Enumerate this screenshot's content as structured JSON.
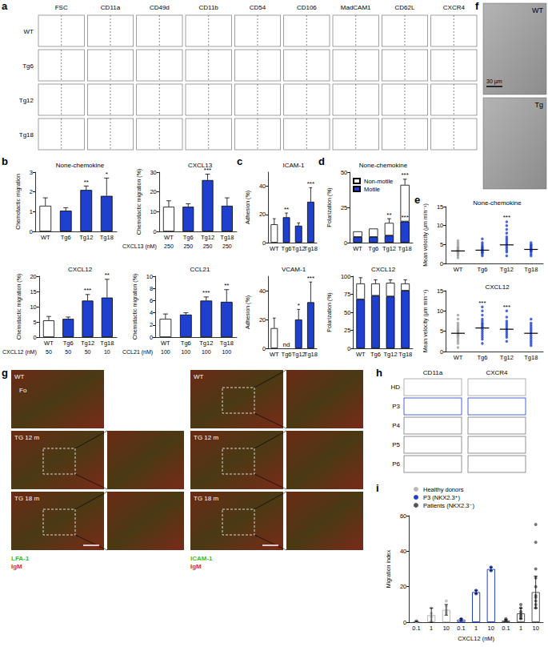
{
  "chart_data": [
    {
      "type": "bar",
      "title": "None-chemokine",
      "y_label": "Chemotactic migration",
      "categories": [
        "WT",
        "Tg6",
        "Tg12",
        "Tg18"
      ],
      "values": [
        1.3,
        1.05,
        2.1,
        1.8
      ],
      "errors": [
        0.4,
        0.15,
        0.2,
        0.9
      ],
      "annotations": [
        null,
        null,
        "**",
        "*"
      ],
      "colors": [
        "#ffffff",
        "#1f3fcf",
        "#1f3fcf",
        "#1f3fcf"
      ],
      "ylim": [
        0,
        3
      ],
      "yticks": [
        0,
        1,
        2,
        3
      ],
      "grid": false
    },
    {
      "type": "bar",
      "title": "CXCL13",
      "y_label": "Chemotactic migration (%)",
      "categories": [
        "WT",
        "Tg6",
        "Tg12",
        "Tg18"
      ],
      "values": [
        12.5,
        12.5,
        26,
        13
      ],
      "errors": [
        3,
        1.5,
        3,
        4
      ],
      "annotations": [
        null,
        null,
        "***",
        null
      ],
      "colors": [
        "#ffffff",
        "#1f3fcf",
        "#1f3fcf",
        "#1f3fcf"
      ],
      "x_sublabels": [
        250,
        250,
        250,
        250
      ],
      "x_sublabel_title": "CXCL13 (nM)",
      "ylim": [
        0,
        30
      ],
      "yticks": [
        0,
        10,
        20,
        30
      ],
      "grid": false
    },
    {
      "type": "bar",
      "title": "CXCL12",
      "y_label": "Chemotactic migration (%)",
      "categories": [
        "WT",
        "Tg6",
        "Tg12",
        "Tg18"
      ],
      "values": [
        5.5,
        6,
        12,
        13
      ],
      "errors": [
        1.3,
        0.6,
        2,
        6
      ],
      "annotations": [
        null,
        null,
        "***",
        "**"
      ],
      "colors": [
        "#ffffff",
        "#1f3fcf",
        "#1f3fcf",
        "#1f3fcf"
      ],
      "x_sublabels": [
        50,
        50,
        50,
        10
      ],
      "x_sublabel_title": "CXCL12 (nM)",
      "ylim": [
        0,
        20
      ],
      "yticks": [
        0,
        5,
        10,
        15,
        20
      ],
      "grid": false
    },
    {
      "type": "bar",
      "title": "CCL21",
      "y_label": "Chemotactic migration (%)",
      "categories": [
        "WT",
        "Tg6",
        "Tg12",
        "Tg18"
      ],
      "values": [
        3,
        3.7,
        6,
        5.8
      ],
      "errors": [
        0.8,
        0.3,
        0.6,
        2
      ],
      "annotations": [
        null,
        null,
        "***",
        "**"
      ],
      "colors": [
        "#ffffff",
        "#1f3fcf",
        "#1f3fcf",
        "#1f3fcf"
      ],
      "x_sublabels": [
        100,
        100,
        100,
        100
      ],
      "x_sublabel_title": "CCL21 (nM)",
      "ylim": [
        0,
        10
      ],
      "yticks": [
        0,
        2,
        4,
        6,
        8,
        10
      ],
      "grid": false
    },
    {
      "type": "bar",
      "title": "ICAM-1",
      "y_label": "Adhesion (%)",
      "categories": [
        "WT",
        "Tg6",
        "Tg12",
        "Tg18"
      ],
      "values": [
        13,
        18,
        12,
        29
      ],
      "errors": [
        4,
        3,
        2,
        10
      ],
      "annotations": [
        null,
        "**",
        null,
        "***"
      ],
      "colors": [
        "#ffffff",
        "#1f3fcf",
        "#1f3fcf",
        "#1f3fcf"
      ],
      "ylim": [
        0,
        50
      ],
      "yticks": [
        0,
        20,
        40
      ],
      "grid": false
    },
    {
      "type": "bar",
      "title": "VCAM-1",
      "y_label": "Adhesion (%)",
      "categories": [
        "WT",
        "Tg6",
        "Tg12",
        "Tg18"
      ],
      "values": [
        14,
        null,
        20,
        32
      ],
      "errors": [
        7,
        null,
        7,
        14
      ],
      "annotations": [
        null,
        "nd",
        "*",
        "***"
      ],
      "colors": [
        "#ffffff",
        "#1f3fcf",
        "#1f3fcf",
        "#1f3fcf"
      ],
      "ylim": [
        0,
        50
      ],
      "yticks": [
        0,
        20,
        40
      ],
      "grid": false
    },
    {
      "type": "bar",
      "title": "None-chemokine",
      "y_label": "Polarization (%)",
      "categories": [
        "WT",
        "Tg6",
        "Tg12",
        "Tg18"
      ],
      "stacked": true,
      "legend": "top-left",
      "series": [
        {
          "name": "Motile",
          "color": "#1f3fcf",
          "values": [
            4,
            4,
            5,
            15
          ],
          "annotations": [
            null,
            null,
            null,
            "***"
          ]
        },
        {
          "name": "Non-motile",
          "color": "#ffffff",
          "values": [
            4,
            6,
            9,
            26
          ],
          "annotations": [
            null,
            null,
            "**",
            "***"
          ]
        }
      ],
      "errors": [
        null,
        null,
        3,
        4
      ],
      "ylim": [
        0,
        50
      ],
      "yticks": [
        0,
        25,
        50
      ],
      "grid": false
    },
    {
      "type": "bar",
      "title": "CXCL12",
      "y_label": "Polarization (%)",
      "categories": [
        "WT",
        "Tg6",
        "Tg12",
        "Tg18"
      ],
      "stacked": true,
      "series": [
        {
          "name": "Motile",
          "color": "#1f3fcf",
          "values": [
            68,
            73,
            72,
            80
          ]
        },
        {
          "name": "Non-motile",
          "color": "#ffffff",
          "values": [
            22,
            17,
            19,
            10
          ]
        }
      ],
      "errors": [
        8,
        5,
        4,
        5
      ],
      "ylim": [
        0,
        100
      ],
      "yticks": [
        0,
        25,
        50,
        75,
        100
      ],
      "grid": false
    },
    {
      "type": "scatter",
      "title": "None-chemokine",
      "y_label": "Mean velocity (μm min⁻¹)",
      "categories": [
        "WT",
        "Tg6",
        "Tg12",
        "Tg18"
      ],
      "colors": [
        "#9e9e9e",
        "#1f3fcf",
        "#1f3fcf",
        "#1f3fcf"
      ],
      "points": [
        [
          1.5,
          2,
          2.3,
          2.6,
          2.8,
          3,
          3.1,
          3.2,
          3.3,
          3.4,
          3.5,
          3.6,
          3.8,
          4,
          4.2,
          4.5,
          5,
          5.5,
          6
        ],
        [
          2,
          2.5,
          2.8,
          3,
          3.3,
          3.5,
          3.7,
          4,
          4.3,
          4.6,
          5,
          5.5,
          6.5
        ],
        [
          2,
          3,
          3.5,
          4,
          4.5,
          5,
          5.5,
          6,
          6.5,
          7,
          8,
          9,
          10,
          11
        ],
        [
          2,
          2.5,
          3,
          3.3,
          3.5,
          3.7,
          4,
          4.2,
          4.5,
          4.8,
          5,
          5.5
        ]
      ],
      "means": [
        3.3,
        3.5,
        4.9,
        3.7
      ],
      "annotations": [
        null,
        null,
        "***",
        null
      ],
      "ylim": [
        0,
        15
      ],
      "yticks": [
        0,
        5,
        10,
        15
      ],
      "grid": false
    },
    {
      "type": "scatter",
      "title": "CXCL12",
      "y_label": "Mean velocity (μm min⁻¹)",
      "categories": [
        "WT",
        "Tg6",
        "Tg12",
        "Tg18"
      ],
      "colors": [
        "#9e9e9e",
        "#1f3fcf",
        "#1f3fcf",
        "#1f3fcf"
      ],
      "points": [
        [
          1,
          2,
          2.5,
          3,
          3.5,
          3.8,
          4,
          4.3,
          4.5,
          4.8,
          5,
          5.3,
          5.6,
          6,
          6.5,
          7,
          8,
          9
        ],
        [
          2,
          3,
          3.5,
          4,
          4.5,
          5,
          5.5,
          6,
          6.3,
          6.7,
          7,
          7.5,
          8,
          9,
          10,
          11
        ],
        [
          2.5,
          3.5,
          4,
          4.5,
          5,
          5.5,
          6,
          6.5,
          7,
          7.5,
          8.5,
          10
        ],
        [
          1.5,
          2,
          2.5,
          3,
          3.5,
          4,
          4.5,
          5,
          5.5,
          6,
          6.5,
          7,
          8
        ]
      ],
      "means": [
        4.5,
        5.8,
        5.5,
        4.5
      ],
      "annotations": [
        null,
        "***",
        "***",
        null
      ],
      "ylim": [
        0,
        15
      ],
      "yticks": [
        0,
        5,
        10,
        15
      ],
      "grid": false
    },
    {
      "type": "bar",
      "y_label": "Migration index",
      "x_label": "CXCL12 (nM)",
      "categories": [
        0.1,
        1,
        10,
        0.1,
        1,
        10,
        0.1,
        1,
        10
      ],
      "legend": "top-left",
      "series": [
        {
          "name": "Healthy donors",
          "color": "#b8b8b8",
          "values": [
            0.5,
            4,
            7,
            null,
            null,
            null,
            null,
            null,
            null
          ],
          "errors": [
            0.3,
            4,
            3,
            null,
            null,
            null,
            null,
            null,
            null
          ],
          "points": [
            [
              0.3,
              0.6,
              1
            ],
            [
              1,
              3,
              5,
              8
            ],
            [
              5,
              6,
              7,
              9,
              12
            ],
            [],
            [],
            [],
            [],
            [],
            []
          ]
        },
        {
          "name": "P3 (NKX2.3⁺)",
          "color": "#1f3fcf",
          "values": [
            null,
            null,
            null,
            1.5,
            17,
            30,
            null,
            null,
            null
          ],
          "errors": [
            null,
            null,
            null,
            0.5,
            1,
            1,
            null,
            null,
            null
          ],
          "points": [
            [],
            [],
            [],
            [
              1,
              2
            ],
            [
              16,
              18
            ],
            [
              29,
              31
            ],
            [],
            [],
            []
          ]
        },
        {
          "name": "Patients (NKX2.3⁻)",
          "color": "#555555",
          "values": [
            null,
            null,
            null,
            null,
            null,
            null,
            1,
            5,
            17
          ],
          "errors": [
            null,
            null,
            null,
            null,
            null,
            null,
            0.5,
            3,
            9
          ],
          "points": [
            [],
            [],
            [],
            [],
            [],
            [],
            [
              0.5,
              1,
              1.5,
              2
            ],
            [
              2,
              3,
              4,
              5,
              6,
              8,
              10
            ],
            [
              8,
              10,
              12,
              14,
              15,
              20,
              25,
              30,
              45,
              55
            ]
          ]
        }
      ],
      "ylim": [
        0,
        60
      ],
      "yticks": [
        0,
        20,
        40,
        60
      ],
      "grid": false
    }
  ],
  "figure": {
    "panel_labels": [
      "a",
      "b",
      "c",
      "d",
      "e",
      "f",
      "g",
      "h",
      "i"
    ],
    "flow_a": {
      "columns": [
        "FSC",
        "CD11a",
        "CD49d",
        "CD11b",
        "CD54",
        "CD106",
        "MadCAM1",
        "CD62L",
        "CXCR4"
      ],
      "rows": [
        "WT",
        "Tg6",
        "Tg12",
        "Tg18"
      ],
      "row_colors": [
        "#777777",
        "#777777",
        "#777777",
        "#777777"
      ]
    },
    "images_f": {
      "labels": [
        "WT",
        "Tg"
      ],
      "scale_bar": "30 µm"
    },
    "images_g": {
      "rows": [
        "WT",
        "TG 12 m",
        "TG 18 m"
      ],
      "annotation": "Fo",
      "stains": [
        [
          {
            "text": "LFA-1",
            "color": "#2fbf2f"
          },
          {
            "text": "IgM",
            "color": "#e02a2a"
          }
        ],
        [
          {
            "text": "ICAM-1",
            "color": "#2fbf2f"
          },
          {
            "text": "IgM",
            "color": "#e02a2a"
          }
        ]
      ]
    },
    "flow_h": {
      "columns": [
        "CD11a",
        "CXCR4"
      ],
      "rows": [
        "HD",
        "P3",
        "P4",
        "P5",
        "P6"
      ],
      "row_colors": [
        "#9e9e9e",
        "#1f3fcf",
        "#777777",
        "#777777",
        "#777777"
      ]
    }
  }
}
